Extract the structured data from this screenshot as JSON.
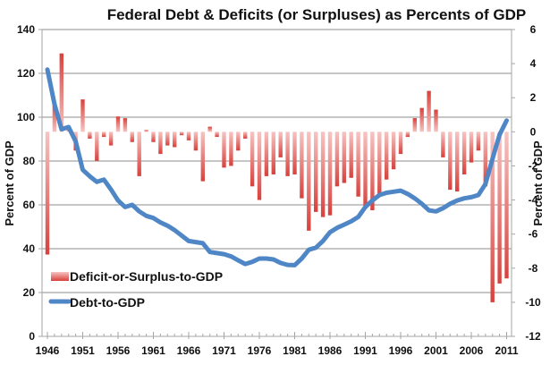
{
  "chart_data": {
    "type": "bar",
    "title": "Federal Debt & Deficits (or Surpluses) as Percents of GDP",
    "xlabel": "",
    "ylabel": "Percent of GDP",
    "ylabel_right": "Percent of GDP",
    "ylim": [
      0,
      140
    ],
    "ylim_right": [
      -12,
      6
    ],
    "yticks": [
      0,
      20,
      40,
      60,
      80,
      100,
      120,
      140
    ],
    "yticks_right": [
      -12,
      -10,
      -8,
      -6,
      -4,
      -2,
      0,
      2,
      4,
      6
    ],
    "xtick_labels": [
      "1946",
      "1951",
      "1956",
      "1961",
      "1966",
      "1971",
      "1976",
      "1981",
      "1986",
      "1991",
      "1996",
      "2001",
      "2006",
      "2011"
    ],
    "grid": true,
    "legend_position": "bottom-left",
    "colors": {
      "bar_light": "#f6c4c2",
      "bar_dark": "#d8413c",
      "line": "#4f86c6"
    },
    "x": [
      1946,
      1947,
      1948,
      1949,
      1950,
      1951,
      1952,
      1953,
      1954,
      1955,
      1956,
      1957,
      1958,
      1959,
      1960,
      1961,
      1962,
      1963,
      1964,
      1965,
      1966,
      1967,
      1968,
      1969,
      1970,
      1971,
      1972,
      1973,
      1974,
      1975,
      1976,
      1977,
      1978,
      1979,
      1980,
      1981,
      1982,
      1983,
      1984,
      1985,
      1986,
      1987,
      1988,
      1989,
      1990,
      1991,
      1992,
      1993,
      1994,
      1995,
      1996,
      1997,
      1998,
      1999,
      2000,
      2001,
      2002,
      2003,
      2004,
      2005,
      2006,
      2007,
      2008,
      2009,
      2010,
      2011
    ],
    "series": [
      {
        "name": "Deficit-or-Surplus-to-GDP",
        "type": "bar",
        "axis": "right",
        "values": [
          -7.2,
          1.7,
          4.6,
          0.2,
          -1.1,
          1.9,
          -0.4,
          -1.7,
          -0.3,
          -0.8,
          0.9,
          0.8,
          -0.6,
          -2.6,
          0.1,
          -0.6,
          -1.3,
          -0.8,
          -0.9,
          -0.2,
          -0.5,
          -1.1,
          -2.9,
          0.3,
          -0.3,
          -2.1,
          -2.0,
          -1.1,
          -0.4,
          -3.2,
          -4.0,
          -2.6,
          -2.5,
          -1.5,
          -2.6,
          -2.5,
          -3.9,
          -5.8,
          -4.7,
          -5.0,
          -4.9,
          -3.2,
          -3.0,
          -2.7,
          -3.8,
          -4.5,
          -4.6,
          -3.8,
          -2.8,
          -2.2,
          -1.3,
          -0.3,
          0.8,
          1.4,
          2.4,
          1.3,
          -1.5,
          -3.4,
          -3.5,
          -2.5,
          -1.8,
          -1.1,
          -3.2,
          -10.0,
          -8.9,
          -8.6
        ]
      },
      {
        "name": "Debt-to-GDP",
        "type": "line",
        "axis": "left",
        "values": [
          121.7,
          106.0,
          94.5,
          95.5,
          89.0,
          76.0,
          73.0,
          70.5,
          71.5,
          67.0,
          62.0,
          59.0,
          60.0,
          57.0,
          55.0,
          54.0,
          52.0,
          50.5,
          48.5,
          46.0,
          43.5,
          43.0,
          42.5,
          38.5,
          38.0,
          37.5,
          36.5,
          34.7,
          33.0,
          34.0,
          35.5,
          35.5,
          35.1,
          33.5,
          32.6,
          32.5,
          35.5,
          39.5,
          40.5,
          43.5,
          47.5,
          49.5,
          51.0,
          52.5,
          54.5,
          59.0,
          62.0,
          64.5,
          65.5,
          66.0,
          66.5,
          65.0,
          63.0,
          60.5,
          57.5,
          57.0,
          58.5,
          60.5,
          62.0,
          63.0,
          63.5,
          64.5,
          69.5,
          81.0,
          92.0,
          98.5
        ]
      }
    ]
  }
}
